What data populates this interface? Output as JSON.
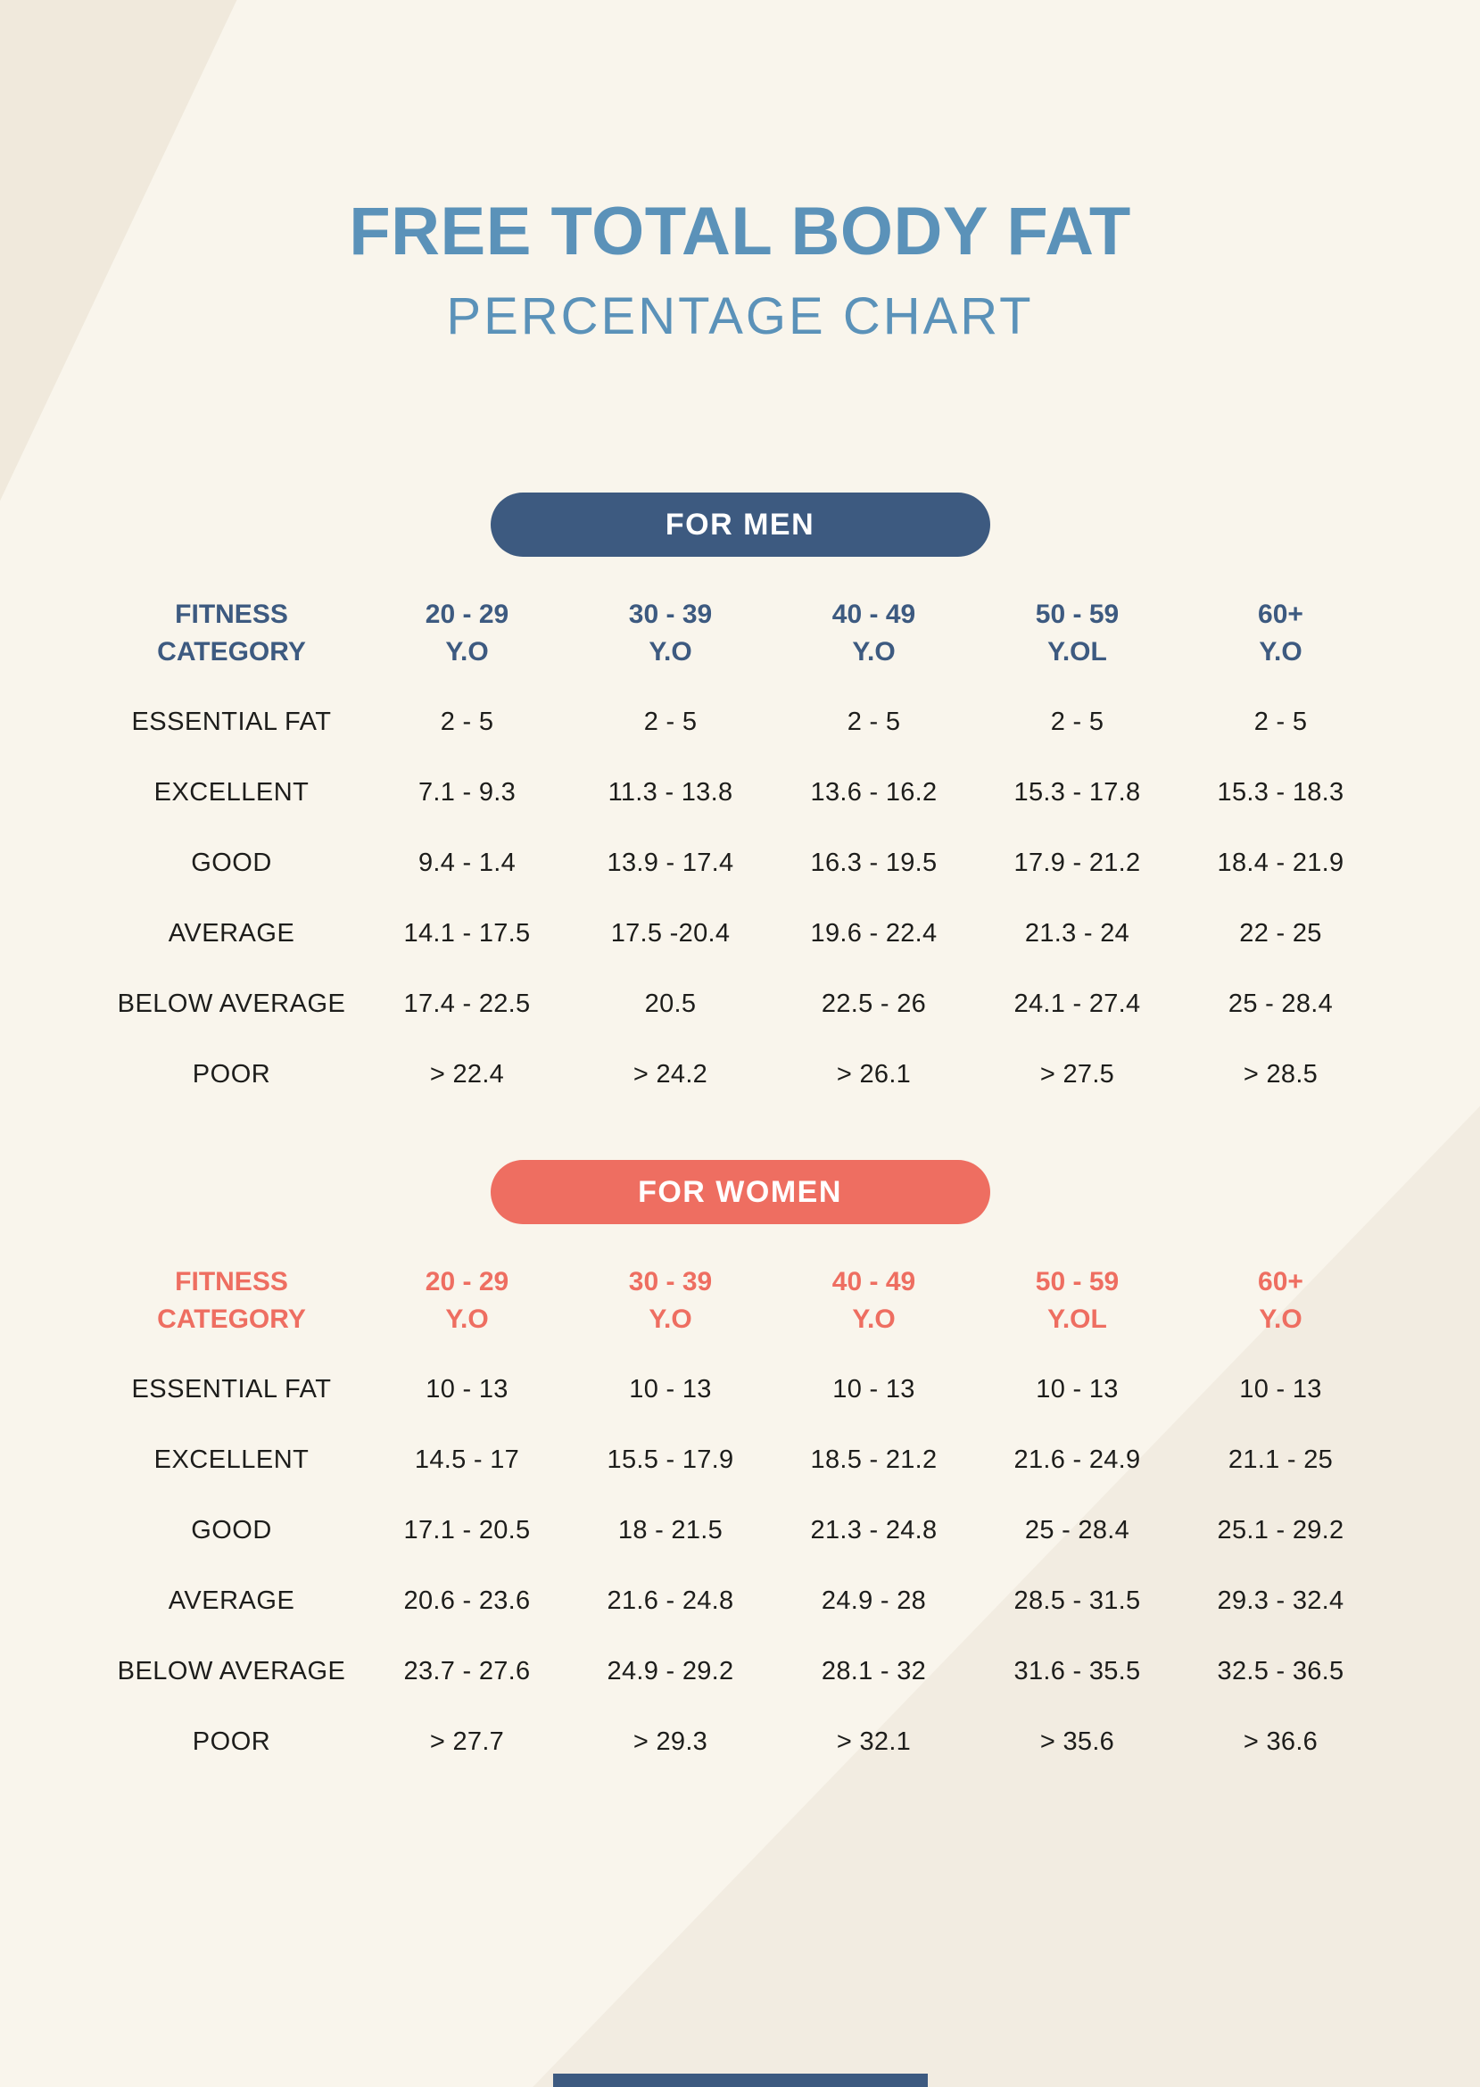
{
  "header": {
    "title": "FREE TOTAL BODY FAT",
    "subtitle": "PERCENTAGE CHART"
  },
  "colors": {
    "page_background": "#f9f5ec",
    "corner_shade": "#f0e9dc",
    "diagonal_shade": "#f2ece1",
    "title_blue": "#5b92b9",
    "men_accent": "#3d5a80",
    "women_accent": "#ee6e61",
    "body_text": "#1d1d1b",
    "pill_text": "#ffffff"
  },
  "chart_data": [
    {
      "type": "table",
      "id": "men",
      "section_label": "FOR MEN",
      "accent_color": "#3d5a80",
      "columns": [
        {
          "line1": "FITNESS",
          "line2": "CATEGORY"
        },
        {
          "line1": "20 - 29",
          "line2": "Y.O"
        },
        {
          "line1": "30 - 39",
          "line2": "Y.O"
        },
        {
          "line1": "40 - 49",
          "line2": "Y.O"
        },
        {
          "line1": "50 - 59",
          "line2": "Y.OL"
        },
        {
          "line1": "60+",
          "line2": "Y.O"
        }
      ],
      "rows": [
        [
          "ESSENTIAL FAT",
          "2 - 5",
          "2 - 5",
          "2 - 5",
          "2 - 5",
          "2 - 5"
        ],
        [
          "EXCELLENT",
          "7.1 - 9.3",
          "11.3 - 13.8",
          "13.6 - 16.2",
          "15.3 - 17.8",
          "15.3 - 18.3"
        ],
        [
          "GOOD",
          "9.4 - 1.4",
          "13.9 - 17.4",
          "16.3 - 19.5",
          "17.9 - 21.2",
          "18.4 - 21.9"
        ],
        [
          "AVERAGE",
          "14.1 - 17.5",
          "17.5 -20.4",
          "19.6 - 22.4",
          "21.3 - 24",
          "22 - 25"
        ],
        [
          "BELOW AVERAGE",
          "17.4 - 22.5",
          "20.5",
          "22.5 - 26",
          "24.1 - 27.4",
          "25 - 28.4"
        ],
        [
          "POOR",
          "> 22.4",
          "> 24.2",
          "> 26.1",
          "> 27.5",
          "> 28.5"
        ]
      ]
    },
    {
      "type": "table",
      "id": "women",
      "section_label": "FOR WOMEN",
      "accent_color": "#ee6e61",
      "columns": [
        {
          "line1": "FITNESS",
          "line2": "CATEGORY"
        },
        {
          "line1": "20 - 29",
          "line2": "Y.O"
        },
        {
          "line1": "30 - 39",
          "line2": "Y.O"
        },
        {
          "line1": "40 - 49",
          "line2": "Y.O"
        },
        {
          "line1": "50 - 59",
          "line2": "Y.OL"
        },
        {
          "line1": "60+",
          "line2": "Y.O"
        }
      ],
      "rows": [
        [
          "ESSENTIAL FAT",
          "10 - 13",
          "10 - 13",
          "10 - 13",
          "10 - 13",
          "10 - 13"
        ],
        [
          "EXCELLENT",
          "14.5 - 17",
          "15.5 - 17.9",
          "18.5 - 21.2",
          "21.6 - 24.9",
          "21.1 - 25"
        ],
        [
          "GOOD",
          "17.1 - 20.5",
          "18 - 21.5",
          "21.3 - 24.8",
          "25 - 28.4",
          "25.1 - 29.2"
        ],
        [
          "AVERAGE",
          "20.6 - 23.6",
          "21.6 - 24.8",
          "24.9 - 28",
          "28.5 - 31.5",
          "29.3 - 32.4"
        ],
        [
          "BELOW AVERAGE",
          "23.7 - 27.6",
          "24.9 - 29.2",
          "28.1 - 32",
          "31.6 - 35.5",
          "32.5 - 36.5"
        ],
        [
          "POOR",
          "> 27.7",
          "> 29.3",
          "> 32.1",
          "> 35.6",
          "> 36.6"
        ]
      ]
    }
  ]
}
